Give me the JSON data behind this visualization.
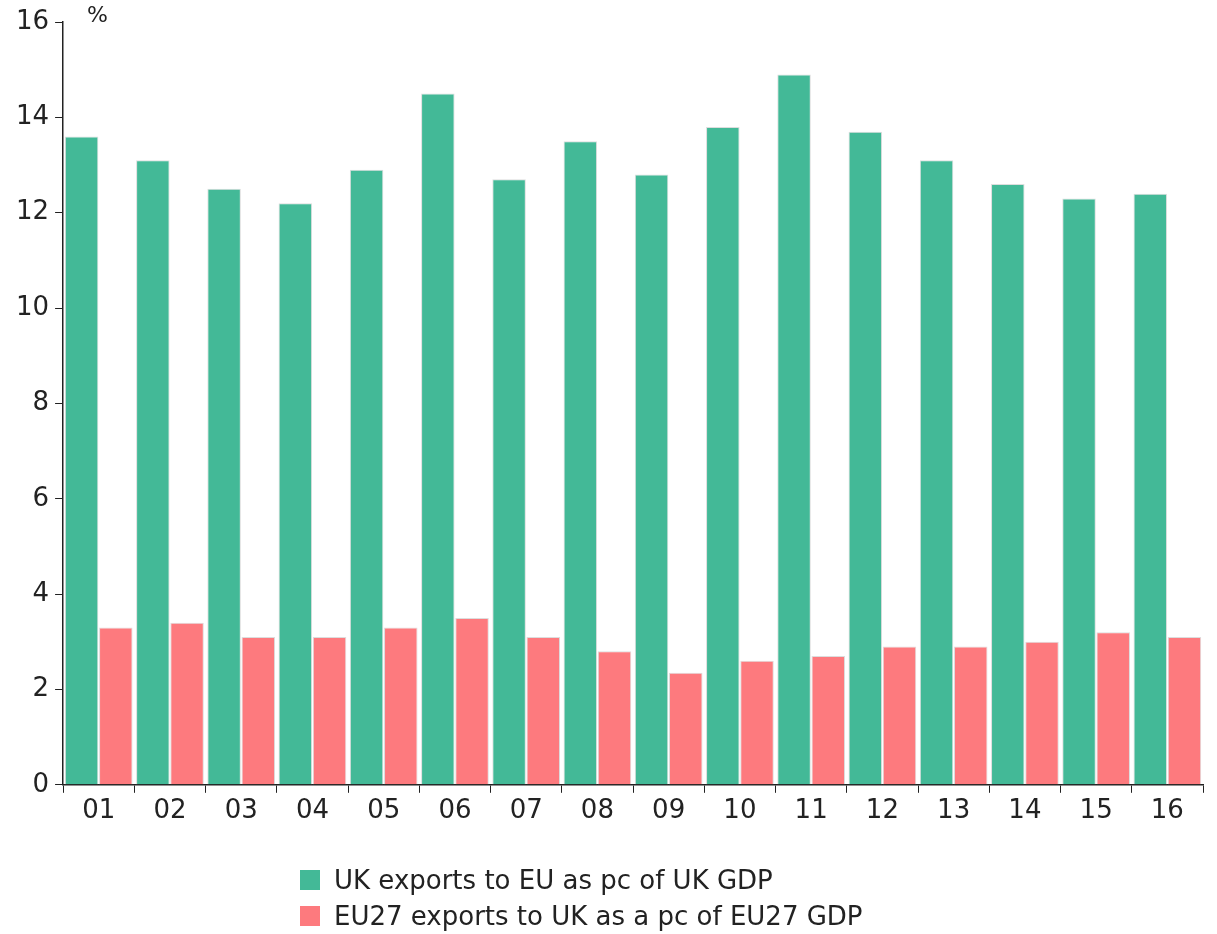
{
  "chart_data": {
    "type": "bar",
    "ylabel": "%",
    "categories": [
      "01",
      "02",
      "03",
      "04",
      "05",
      "06",
      "07",
      "08",
      "09",
      "10",
      "11",
      "12",
      "13",
      "14",
      "15",
      "16"
    ],
    "series": [
      {
        "name": "UK exports to EU as pc of UK GDP",
        "color": "#43b997",
        "values": [
          13.6,
          13.1,
          12.5,
          12.2,
          12.9,
          14.5,
          12.7,
          13.5,
          12.8,
          13.8,
          14.9,
          13.7,
          13.1,
          12.6,
          12.3,
          12.4
        ]
      },
      {
        "name": "EU27 exports to UK as a pc of EU27 GDP",
        "color": "#fd7a7e",
        "values": [
          3.3,
          3.4,
          3.1,
          3.1,
          3.3,
          3.5,
          3.1,
          2.8,
          2.35,
          2.6,
          2.7,
          2.9,
          2.9,
          3.0,
          3.2,
          3.1
        ]
      }
    ],
    "ylim": [
      0,
      16
    ],
    "yticks": [
      0,
      2,
      4,
      6,
      8,
      10,
      12,
      14,
      16
    ],
    "grid": false,
    "legend": "bottom"
  }
}
